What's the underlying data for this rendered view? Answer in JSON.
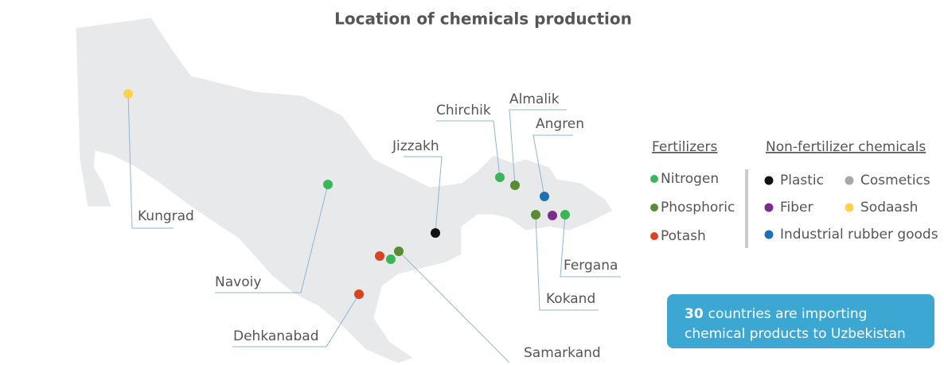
{
  "title": "Location of chemicals production",
  "cities": [
    "Kungrad",
    "Navoiy",
    "Dehkanabad",
    "Samarkand",
    "Jizzakh",
    "Chirchik",
    "Almalik",
    "Angren",
    "Kokand",
    "Fergana"
  ],
  "legend": {
    "fertilizers": {
      "title": "Fertilizers",
      "items": [
        {
          "name": "Nitrogen",
          "color": "#3cb55a"
        },
        {
          "name": "Phosphoric",
          "color": "#5a8a32"
        },
        {
          "name": "Potash",
          "color": "#d9431e"
        }
      ]
    },
    "non_fertilizer": {
      "title": "Non-fertilizer chemicals",
      "items": [
        {
          "name": "Plastic",
          "color": "#111111"
        },
        {
          "name": "Cosmetics",
          "color": "#a8a8a8"
        },
        {
          "name": "Fiber",
          "color": "#7b2d8e"
        },
        {
          "name": "Sodaash",
          "color": "#ffd24d"
        },
        {
          "name": "Industrial rubber goods",
          "color": "#1f6fb5"
        }
      ]
    }
  },
  "callout": {
    "highlight": 30,
    "line1": "countries are importing",
    "line2": "chemical products to Uzbekistan"
  }
}
